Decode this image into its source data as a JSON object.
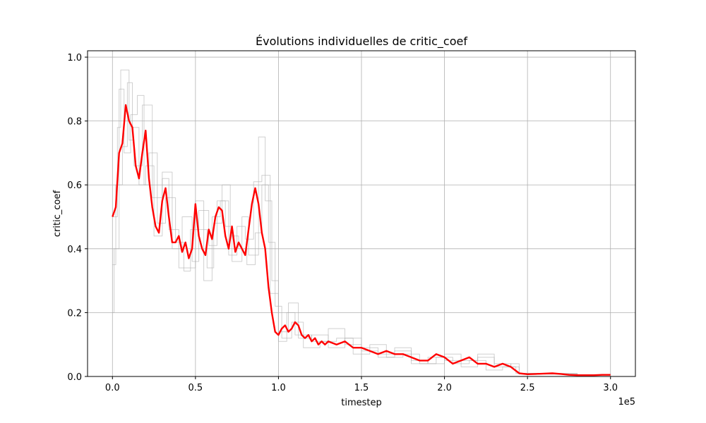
{
  "chart_data": {
    "type": "line",
    "title": "Évolutions individuelles de critic_coef",
    "xlabel": "timestep",
    "ylabel": "critic_coef",
    "x_offset_label": "1e5",
    "xlim": [
      -0.15,
      3.15
    ],
    "ylim": [
      0,
      1.02
    ],
    "x_ticks": [
      0,
      0.5,
      1.0,
      1.5,
      2.0,
      2.5,
      3.0
    ],
    "x_tick_labels": [
      "0.0",
      "0.5",
      "1.0",
      "1.5",
      "2.0",
      "2.5",
      "3.0"
    ],
    "y_ticks": [
      0,
      0.2,
      0.4,
      0.6,
      0.8,
      1.0
    ],
    "y_tick_labels": [
      "0.0",
      "0.2",
      "0.4",
      "0.6",
      "0.8",
      "1.0"
    ],
    "grid": true,
    "colors": {
      "mean": "#ff0000",
      "individual": "#b0b0b0",
      "grid": "#b0b0b0"
    },
    "series": [
      {
        "role": "mean",
        "x": [
          0,
          0.02,
          0.04,
          0.06,
          0.08,
          0.1,
          0.12,
          0.14,
          0.16,
          0.18,
          0.2,
          0.22,
          0.24,
          0.26,
          0.28,
          0.3,
          0.32,
          0.34,
          0.36,
          0.38,
          0.4,
          0.42,
          0.44,
          0.46,
          0.48,
          0.5,
          0.52,
          0.54,
          0.56,
          0.58,
          0.6,
          0.62,
          0.64,
          0.66,
          0.68,
          0.7,
          0.72,
          0.74,
          0.76,
          0.78,
          0.8,
          0.82,
          0.84,
          0.86,
          0.88,
          0.9,
          0.92,
          0.94,
          0.96,
          0.98,
          1.0,
          1.02,
          1.04,
          1.06,
          1.08,
          1.1,
          1.12,
          1.14,
          1.16,
          1.18,
          1.2,
          1.22,
          1.24,
          1.26,
          1.28,
          1.3,
          1.35,
          1.4,
          1.45,
          1.5,
          1.55,
          1.6,
          1.65,
          1.7,
          1.75,
          1.8,
          1.85,
          1.9,
          1.95,
          2.0,
          2.05,
          2.1,
          2.15,
          2.2,
          2.25,
          2.3,
          2.35,
          2.4,
          2.45,
          2.5,
          2.55,
          2.6,
          2.65,
          2.7,
          2.75,
          2.8,
          2.85,
          2.9,
          2.95,
          3.0
        ],
        "y": [
          0.5,
          0.53,
          0.7,
          0.73,
          0.85,
          0.8,
          0.78,
          0.66,
          0.62,
          0.7,
          0.77,
          0.62,
          0.53,
          0.47,
          0.45,
          0.55,
          0.59,
          0.5,
          0.42,
          0.42,
          0.44,
          0.39,
          0.42,
          0.37,
          0.4,
          0.54,
          0.44,
          0.4,
          0.38,
          0.46,
          0.43,
          0.5,
          0.53,
          0.52,
          0.44,
          0.4,
          0.47,
          0.39,
          0.42,
          0.4,
          0.38,
          0.46,
          0.54,
          0.59,
          0.54,
          0.45,
          0.4,
          0.28,
          0.2,
          0.14,
          0.13,
          0.15,
          0.16,
          0.14,
          0.15,
          0.17,
          0.16,
          0.13,
          0.12,
          0.13,
          0.11,
          0.12,
          0.1,
          0.11,
          0.1,
          0.11,
          0.1,
          0.11,
          0.09,
          0.09,
          0.08,
          0.07,
          0.08,
          0.07,
          0.07,
          0.06,
          0.05,
          0.05,
          0.07,
          0.06,
          0.04,
          0.05,
          0.06,
          0.04,
          0.04,
          0.03,
          0.04,
          0.03,
          0.01,
          0.007,
          0.008,
          0.009,
          0.01,
          0.008,
          0.005,
          0.004,
          0.004,
          0.004,
          0.005,
          0.005
        ]
      },
      {
        "role": "individual",
        "x": [
          0,
          0.03,
          0.05,
          0.08,
          0.1,
          0.13,
          0.18,
          0.2,
          0.24,
          0.3,
          0.34,
          0.4,
          0.45,
          0.5,
          0.55,
          0.6,
          0.65,
          0.7,
          0.75,
          0.8,
          0.85,
          0.9,
          0.95,
          1.0,
          1.05,
          1.1,
          1.2,
          1.3,
          1.4,
          1.5,
          1.6,
          1.7,
          1.8,
          1.9,
          2.0,
          2.1,
          2.2,
          2.3,
          2.4,
          2.45,
          2.6,
          2.8,
          3.0
        ],
        "y": [
          0.5,
          0.78,
          0.96,
          0.96,
          0.74,
          0.66,
          0.85,
          0.85,
          0.56,
          0.62,
          0.46,
          0.34,
          0.34,
          0.55,
          0.3,
          0.5,
          0.55,
          0.38,
          0.47,
          0.43,
          0.61,
          0.63,
          0.26,
          0.11,
          0.2,
          0.13,
          0.11,
          0.15,
          0.1,
          0.09,
          0.07,
          0.08,
          0.04,
          0.06,
          0.05,
          0.03,
          0.06,
          0.04,
          0.03,
          0.01,
          0.01,
          0.005,
          0.005
        ]
      },
      {
        "role": "individual",
        "x": [
          0,
          0.02,
          0.06,
          0.09,
          0.12,
          0.16,
          0.2,
          0.25,
          0.3,
          0.36,
          0.42,
          0.48,
          0.52,
          0.58,
          0.63,
          0.68,
          0.72,
          0.78,
          0.82,
          0.88,
          0.92,
          0.96,
          1.0,
          1.06,
          1.12,
          1.2,
          1.3,
          1.4,
          1.5,
          1.6,
          1.7,
          1.8,
          1.9,
          2.0,
          2.1,
          2.2,
          2.3,
          2.4,
          2.45,
          2.6,
          2.8,
          3.0
        ],
        "y": [
          0.35,
          0.6,
          0.72,
          0.92,
          0.78,
          0.6,
          0.66,
          0.44,
          0.64,
          0.4,
          0.5,
          0.36,
          0.52,
          0.41,
          0.55,
          0.47,
          0.36,
          0.5,
          0.38,
          0.75,
          0.55,
          0.3,
          0.14,
          0.23,
          0.12,
          0.13,
          0.09,
          0.12,
          0.08,
          0.06,
          0.09,
          0.05,
          0.04,
          0.07,
          0.05,
          0.07,
          0.03,
          0.04,
          0.01,
          0.008,
          0.005,
          0.005
        ]
      },
      {
        "role": "individual",
        "x": [
          0,
          0.01,
          0.04,
          0.07,
          0.11,
          0.15,
          0.19,
          0.22,
          0.27,
          0.32,
          0.38,
          0.43,
          0.47,
          0.53,
          0.57,
          0.61,
          0.66,
          0.71,
          0.76,
          0.81,
          0.86,
          0.9,
          0.94,
          0.98,
          1.02,
          1.08,
          1.15,
          1.25,
          1.35,
          1.45,
          1.55,
          1.65,
          1.75,
          1.85,
          1.95,
          2.05,
          2.15,
          2.25,
          2.35,
          2.43,
          2.6,
          2.8,
          3.0
        ],
        "y": [
          0.2,
          0.4,
          0.9,
          0.7,
          0.82,
          0.88,
          0.6,
          0.7,
          0.48,
          0.56,
          0.42,
          0.33,
          0.46,
          0.46,
          0.34,
          0.48,
          0.6,
          0.44,
          0.4,
          0.35,
          0.45,
          0.6,
          0.42,
          0.22,
          0.12,
          0.17,
          0.09,
          0.11,
          0.12,
          0.07,
          0.1,
          0.06,
          0.07,
          0.04,
          0.06,
          0.04,
          0.05,
          0.02,
          0.03,
          0.01,
          0.007,
          0.005,
          0.005
        ]
      }
    ]
  }
}
